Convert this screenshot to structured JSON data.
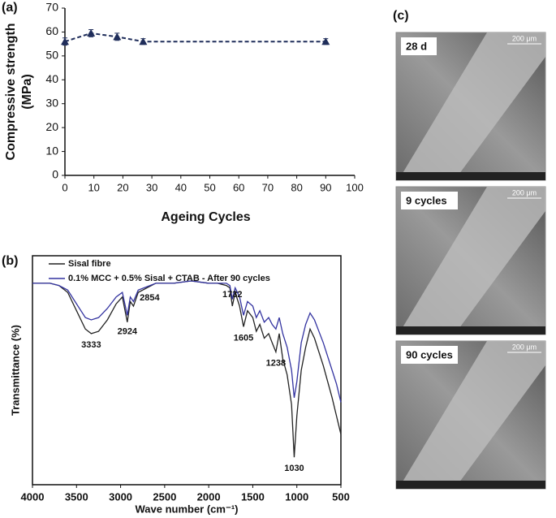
{
  "chart_data": [
    {
      "type": "line",
      "panel_label": "(a)",
      "y_label": [
        "Compressive strength",
        "(MPa)"
      ],
      "x_label": "Ageing Cycles",
      "x": [
        0,
        9,
        18,
        27,
        90
      ],
      "values": [
        56,
        59.5,
        58,
        56,
        56
      ],
      "errors": [
        1.5,
        1.5,
        1.5,
        1.2,
        1.2
      ],
      "color": "#1f2d5a",
      "line_style": "dashed",
      "marker": "triangle",
      "xlim": [
        0,
        100
      ],
      "xticks": [
        0,
        10,
        20,
        30,
        40,
        50,
        60,
        70,
        80,
        90,
        100
      ],
      "ylim": [
        0,
        70
      ],
      "yticks": [
        0,
        10,
        20,
        30,
        40,
        50,
        60,
        70
      ]
    },
    {
      "type": "line",
      "panel_label": "(b)",
      "y_label": "Transmittance (%)",
      "x_label": "Wave number (cm⁻¹)",
      "x": [
        4000,
        3800,
        3700,
        3600,
        3500,
        3400,
        3333,
        3250,
        3150,
        3050,
        2980,
        2924,
        2890,
        2854,
        2800,
        2600,
        2400,
        2200,
        2000,
        1900,
        1800,
        1760,
        1732,
        1700,
        1650,
        1605,
        1560,
        1500,
        1460,
        1420,
        1370,
        1320,
        1280,
        1238,
        1200,
        1160,
        1110,
        1060,
        1030,
        1000,
        950,
        900,
        850,
        800,
        750,
        700,
        650,
        600,
        550,
        500
      ],
      "series": [
        {
          "name": "Sisal fibre",
          "color": "#222222",
          "values": [
            88,
            88,
            87,
            84,
            76,
            68,
            66,
            67,
            72,
            79,
            82,
            71,
            80,
            78,
            84,
            88,
            88,
            89,
            88,
            88,
            87,
            86,
            78,
            84,
            78,
            69,
            76,
            73,
            67,
            70,
            64,
            66,
            62,
            58,
            66,
            55,
            48,
            35,
            12,
            30,
            50,
            60,
            68,
            64,
            58,
            52,
            45,
            38,
            30,
            22
          ]
        },
        {
          "name": "0.1% MCC + 0.5% Sisal + CTAB - After 90 cycles",
          "color": "#3333a0",
          "values": [
            88,
            88,
            87,
            85,
            79,
            73,
            72,
            73,
            77,
            82,
            84,
            74,
            82,
            80,
            85,
            88,
            88,
            89,
            88,
            88,
            88,
            87,
            81,
            86,
            82,
            74,
            80,
            78,
            73,
            76,
            71,
            73,
            70,
            68,
            73,
            66,
            60,
            50,
            38,
            45,
            62,
            70,
            75,
            72,
            67,
            62,
            56,
            50,
            44,
            36
          ]
        }
      ],
      "annotations": [
        {
          "value": 3333,
          "label": "3333"
        },
        {
          "value": 2924,
          "label": "2924"
        },
        {
          "value": 2854,
          "label": "2854"
        },
        {
          "value": 1732,
          "label": "1732"
        },
        {
          "value": 1605,
          "label": "1605"
        },
        {
          "value": 1238,
          "label": "1238"
        },
        {
          "value": 1030,
          "label": "1030"
        }
      ],
      "xlim": [
        4000,
        500
      ],
      "xticks": [
        4000,
        3500,
        3000,
        2500,
        2000,
        1500,
        1000,
        500
      ],
      "ylim": [
        0,
        100
      ],
      "legend": "upper-left"
    }
  ],
  "panel_c": {
    "label": "(c)",
    "images": [
      {
        "label": "28 d",
        "scale": "200 μm"
      },
      {
        "label": "9 cycles",
        "scale": "200 μm"
      },
      {
        "label": "90 cycles",
        "scale": "200 μm"
      }
    ]
  }
}
